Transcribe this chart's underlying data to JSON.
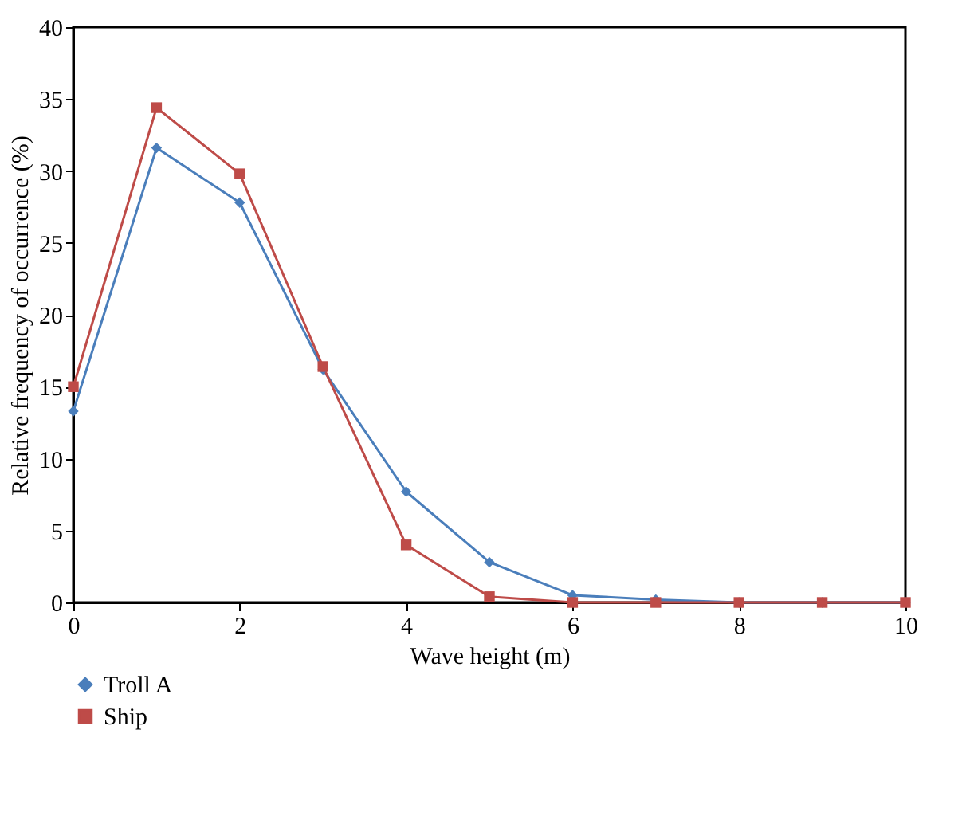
{
  "chart_data": {
    "type": "line",
    "xlabel": "Wave height (m)",
    "ylabel": "Relative frequency of occurrence (%)",
    "x": [
      0,
      1,
      2,
      3,
      4,
      5,
      6,
      7,
      8,
      9,
      10
    ],
    "series": [
      {
        "name": "Troll A",
        "color": "#4a7ebb",
        "marker": "diamond",
        "values": [
          13.3,
          31.6,
          27.8,
          16.2,
          7.7,
          2.8,
          0.5,
          0.2,
          0,
          0,
          0
        ]
      },
      {
        "name": "Ship",
        "color": "#be4b48",
        "marker": "square",
        "values": [
          15.0,
          34.4,
          29.8,
          16.4,
          4.0,
          0.4,
          0,
          0,
          0,
          0,
          0
        ]
      }
    ],
    "xlim": [
      0,
      10
    ],
    "xticks": [
      0,
      2,
      4,
      6,
      8,
      10
    ],
    "ylim": [
      0,
      40
    ],
    "yticks": [
      0,
      5,
      10,
      15,
      20,
      25,
      30,
      35,
      40
    ],
    "grid": false,
    "legend": "bottom left",
    "line_style": "solid"
  }
}
